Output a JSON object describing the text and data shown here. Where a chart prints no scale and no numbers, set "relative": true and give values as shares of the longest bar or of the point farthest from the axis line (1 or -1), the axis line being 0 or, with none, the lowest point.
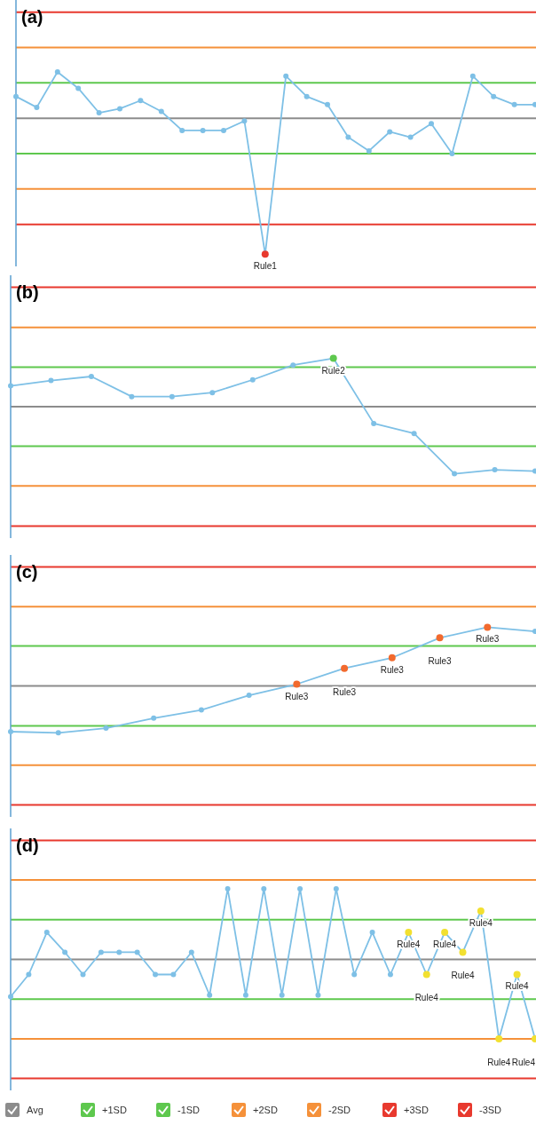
{
  "chart_data": [
    {
      "type": "line",
      "title": "(a)",
      "relative": true,
      "categories": [
        null,
        null,
        null,
        null,
        null,
        null,
        null,
        null,
        null,
        null,
        null,
        null,
        null,
        null,
        null,
        null,
        null,
        null,
        null,
        null,
        null,
        null,
        null,
        null,
        null,
        null
      ],
      "marker": "circle",
      "series": [
        {
          "color": "#7ec0e6",
          "values": [
            0.16,
            0.08,
            0.34,
            0.22,
            0.04,
            0.07,
            0.13,
            0.05,
            -0.09,
            -0.09,
            -0.09,
            -0.02,
            -1,
            0.31,
            0.16,
            0.1,
            -0.14,
            -0.24,
            -0.1,
            -0.14,
            -0.04,
            -0.26,
            0.31,
            0.16,
            0.1,
            0.1
          ],
          "colors": [
            "#7ec0e6",
            "#7ec0e6",
            "#7ec0e6",
            "#7ec0e6",
            "#7ec0e6",
            "#7ec0e6",
            "#7ec0e6",
            "#7ec0e6",
            "#7ec0e6",
            "#7ec0e6",
            "#7ec0e6",
            "#7ec0e6",
            "#e8392e",
            "#7ec0e6",
            "#7ec0e6",
            "#7ec0e6",
            "#7ec0e6",
            "#7ec0e6",
            "#7ec0e6",
            "#7ec0e6",
            "#7ec0e6",
            "#7ec0e6",
            "#7ec0e6",
            "#7ec0e6",
            "#7ec0e6",
            "#7ec0e6"
          ],
          "value_labels": [
            null,
            null,
            null,
            null,
            null,
            null,
            null,
            null,
            null,
            null,
            null,
            null,
            null,
            null,
            null,
            null,
            null,
            null,
            null,
            null,
            null,
            null,
            null,
            null,
            null,
            null
          ]
        }
      ],
      "annotations": [
        {
          "text": "Rule1",
          "y": -1
        }
      ],
      "ref_lines": [
        {
          "axis": "y",
          "value": 0,
          "color": "#8c8c8c"
        },
        {
          "axis": "y",
          "value": 0.26,
          "color": "#5ec84e"
        },
        {
          "axis": "y",
          "value": -0.26,
          "color": "#5ec84e"
        },
        {
          "axis": "y",
          "value": 0.52,
          "color": "#f5913a"
        },
        {
          "axis": "y",
          "value": -0.52,
          "color": "#f5913a"
        },
        {
          "axis": "y",
          "value": 0.78,
          "color": "#e8392e"
        },
        {
          "axis": "y",
          "value": -0.78,
          "color": "#e8392e"
        }
      ]
    },
    {
      "type": "line",
      "title": "(b)",
      "relative": true,
      "categories": [
        null,
        null,
        null,
        null,
        null,
        null,
        null,
        null,
        null,
        null,
        null,
        null,
        null,
        null
      ],
      "marker": "circle",
      "series": [
        {
          "color": "#7ec0e6",
          "values": [
            0.31,
            0.39,
            0.45,
            0.15,
            0.15,
            0.21,
            0.4,
            0.62,
            0.72,
            -0.25,
            -0.4,
            -1,
            -0.94,
            -0.96
          ],
          "colors": [
            "#7ec0e6",
            "#7ec0e6",
            "#7ec0e6",
            "#7ec0e6",
            "#7ec0e6",
            "#7ec0e6",
            "#7ec0e6",
            "#7ec0e6",
            "#5ec84e",
            "#7ec0e6",
            "#7ec0e6",
            "#7ec0e6",
            "#7ec0e6",
            "#7ec0e6"
          ],
          "value_labels": [
            null,
            null,
            null,
            null,
            null,
            null,
            null,
            null,
            null,
            null,
            null,
            null,
            null,
            null
          ]
        }
      ],
      "annotations": [
        {
          "text": "Rule2",
          "y": 0.72
        }
      ],
      "ref_lines": [
        {
          "axis": "y",
          "value": 0,
          "color": "#8c8c8c"
        },
        {
          "axis": "y",
          "value": 0.59,
          "color": "#5ec84e"
        },
        {
          "axis": "y",
          "value": -0.59,
          "color": "#5ec84e"
        },
        {
          "axis": "y",
          "value": 1.18,
          "color": "#f5913a"
        },
        {
          "axis": "y",
          "value": -1.18,
          "color": "#f5913a"
        },
        {
          "axis": "y",
          "value": 1.78,
          "color": "#e8392e"
        },
        {
          "axis": "y",
          "value": -1.78,
          "color": "#e8392e"
        }
      ]
    },
    {
      "type": "line",
      "title": "(c)",
      "relative": true,
      "categories": [
        null,
        null,
        null,
        null,
        null,
        null,
        null,
        null,
        null,
        null,
        null,
        null
      ],
      "marker": "circle",
      "series": [
        {
          "color": "#7ec0e6",
          "values": [
            -0.78,
            -0.8,
            -0.72,
            -0.55,
            -0.41,
            -0.16,
            0.03,
            0.3,
            0.48,
            0.82,
            1,
            0.93
          ],
          "colors": [
            "#7ec0e6",
            "#7ec0e6",
            "#7ec0e6",
            "#7ec0e6",
            "#7ec0e6",
            "#7ec0e6",
            "#f26a2e",
            "#f26a2e",
            "#f26a2e",
            "#f26a2e",
            "#f26a2e",
            "#7ec0e6"
          ],
          "value_labels": [
            null,
            null,
            null,
            null,
            null,
            null,
            null,
            null,
            null,
            null,
            null,
            null
          ]
        }
      ],
      "annotations": [
        {
          "text": "Rule3",
          "y": 0.03
        },
        {
          "text": "Rule3",
          "y": 0.3
        },
        {
          "text": "Rule3",
          "y": 0.48
        },
        {
          "text": "Rule3",
          "y": 0.82
        },
        {
          "text": "Rule3",
          "y": 1
        }
      ],
      "ref_lines": [
        {
          "axis": "y",
          "value": 0,
          "color": "#8c8c8c"
        },
        {
          "axis": "y",
          "value": 0.68,
          "color": "#5ec84e"
        },
        {
          "axis": "y",
          "value": -0.68,
          "color": "#5ec84e"
        },
        {
          "axis": "y",
          "value": 1.35,
          "color": "#f5913a"
        },
        {
          "axis": "y",
          "value": -1.35,
          "color": "#f5913a"
        },
        {
          "axis": "y",
          "value": 2.03,
          "color": "#e8392e"
        },
        {
          "axis": "y",
          "value": -2.03,
          "color": "#e8392e"
        }
      ]
    },
    {
      "type": "line",
      "title": "(d)",
      "relative": true,
      "categories": [
        null,
        null,
        null,
        null,
        null,
        null,
        null,
        null,
        null,
        null,
        null,
        null,
        null,
        null,
        null,
        null,
        null,
        null,
        null,
        null,
        null,
        null,
        null,
        null,
        null,
        null,
        null,
        null,
        null,
        null
      ],
      "marker": "circle",
      "legend": "bottom",
      "series": [
        {
          "color": "#7ec0e6",
          "values": [
            -0.47,
            -0.19,
            0.34,
            0.09,
            -0.19,
            0.09,
            0.09,
            0.09,
            -0.19,
            -0.19,
            0.09,
            -0.45,
            0.89,
            -0.45,
            0.89,
            -0.45,
            0.89,
            -0.45,
            0.89,
            -0.19,
            0.34,
            -0.19,
            0.34,
            -0.19,
            0.34,
            0.09,
            0.61,
            -1,
            -0.19,
            -1
          ],
          "colors": [
            "#7ec0e6",
            "#7ec0e6",
            "#7ec0e6",
            "#7ec0e6",
            "#7ec0e6",
            "#7ec0e6",
            "#7ec0e6",
            "#7ec0e6",
            "#7ec0e6",
            "#7ec0e6",
            "#7ec0e6",
            "#7ec0e6",
            "#7ec0e6",
            "#7ec0e6",
            "#7ec0e6",
            "#7ec0e6",
            "#7ec0e6",
            "#7ec0e6",
            "#7ec0e6",
            "#7ec0e6",
            "#7ec0e6",
            "#7ec0e6",
            "#f2e030",
            "#f2e030",
            "#f2e030",
            "#f2e030",
            "#f2e030",
            "#f2e030",
            "#f2e030",
            "#f2e030"
          ],
          "value_labels": [
            null,
            null,
            null,
            null,
            null,
            null,
            null,
            null,
            null,
            null,
            null,
            null,
            null,
            null,
            null,
            null,
            null,
            null,
            null,
            null,
            null,
            null,
            null,
            null,
            null,
            null,
            null,
            null,
            null,
            null
          ]
        }
      ],
      "annotations": [
        {
          "text": "Rule4",
          "y": 0.34
        },
        {
          "text": "Rule4",
          "y": -0.19
        },
        {
          "text": "Rule4",
          "y": 0.34
        },
        {
          "text": "Rule4",
          "y": 0.09
        },
        {
          "text": "Rule4",
          "y": 0.61
        },
        {
          "text": "Rule4",
          "y": -1
        },
        {
          "text": "Rule4",
          "y": -0.19
        },
        {
          "text": "Rule4",
          "y": -1
        }
      ],
      "ref_lines": [
        {
          "axis": "y",
          "value": 0,
          "color": "#8c8c8c",
          "label": "Avg"
        },
        {
          "axis": "y",
          "value": 0.5,
          "color": "#5ec84e",
          "label": "+1SD"
        },
        {
          "axis": "y",
          "value": -0.5,
          "color": "#5ec84e",
          "label": "-1SD"
        },
        {
          "axis": "y",
          "value": 1,
          "color": "#f5913a",
          "label": "+2SD"
        },
        {
          "axis": "y",
          "value": -1,
          "color": "#f5913a",
          "label": "-2SD"
        },
        {
          "axis": "y",
          "value": 1.5,
          "color": "#e8392e",
          "label": "+3SD"
        },
        {
          "axis": "y",
          "value": -1.5,
          "color": "#e8392e",
          "label": "-3SD"
        }
      ]
    }
  ]
}
